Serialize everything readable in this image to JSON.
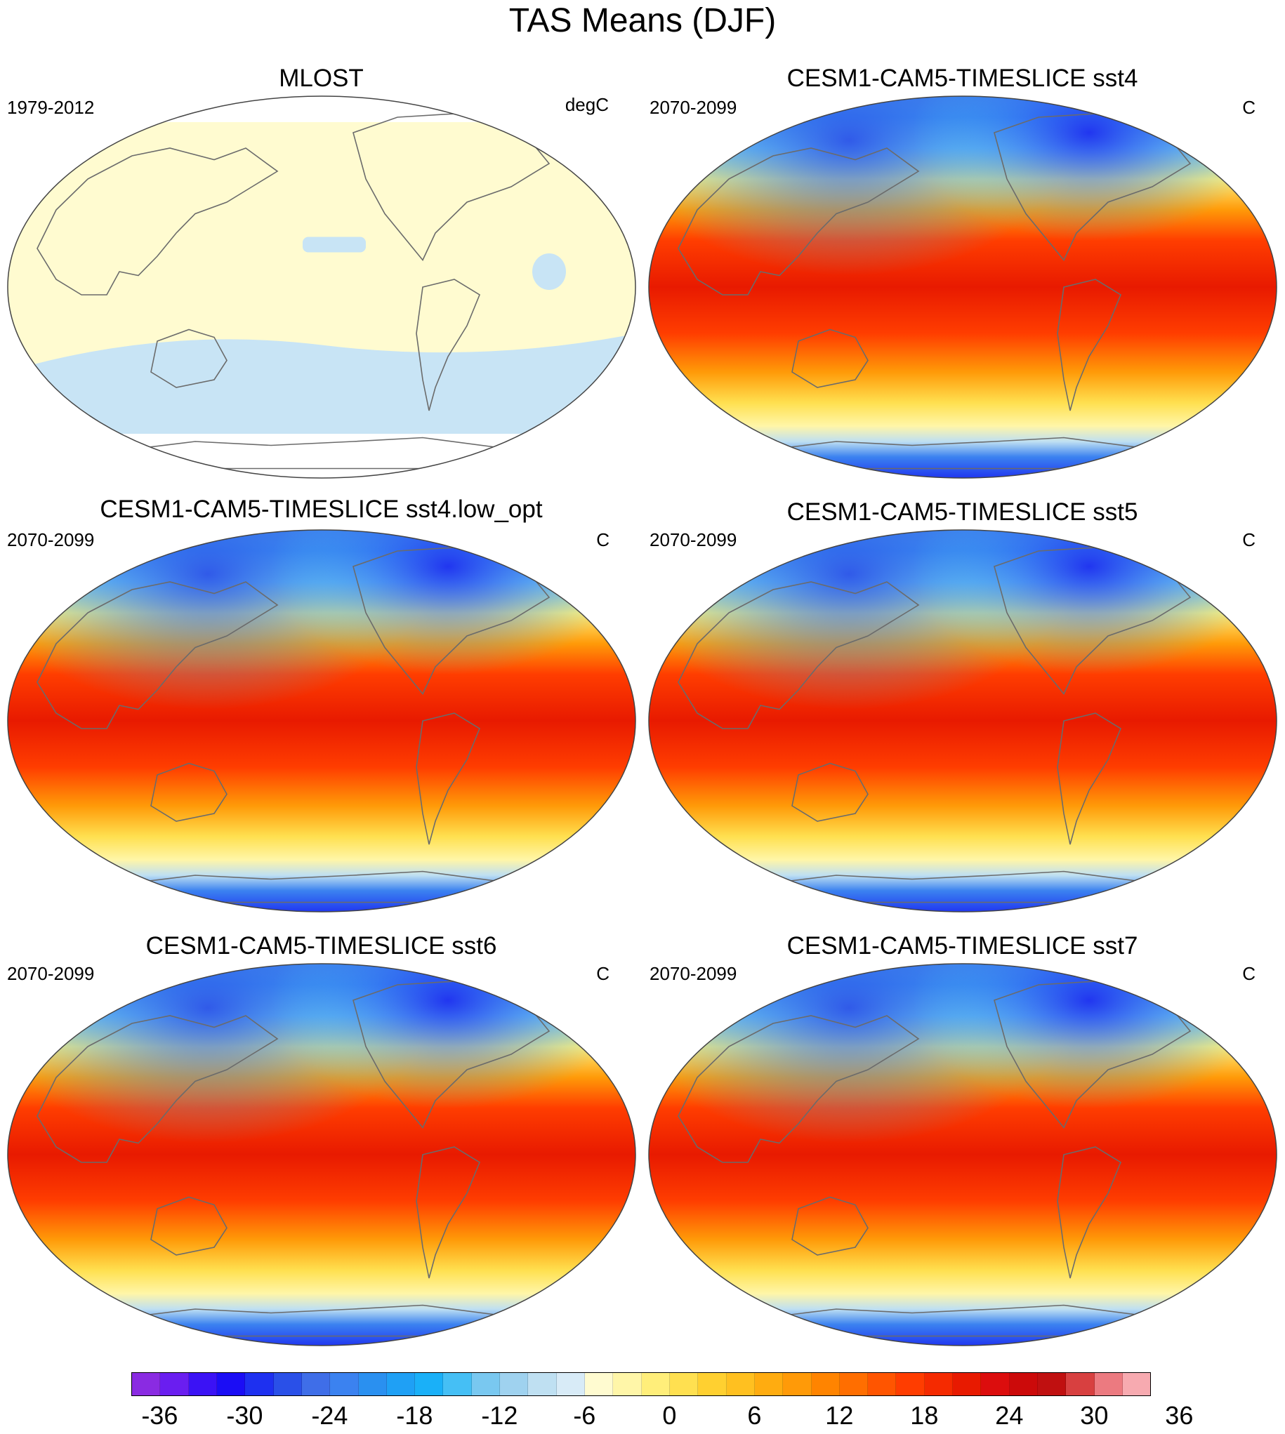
{
  "title": "TAS Means (DJF)",
  "panels": [
    {
      "title": "MLOST",
      "left_text": "1979-2012",
      "right_text": "degC",
      "style": "obs"
    },
    {
      "title": "CESM1-CAM5-TIMESLICE sst4",
      "left_text": "2070-2099",
      "right_text": "C",
      "style": "model"
    },
    {
      "title": "CESM1-CAM5-TIMESLICE sst4.low_opt",
      "left_text": "2070-2099",
      "right_text": "C",
      "style": "model"
    },
    {
      "title": "CESM1-CAM5-TIMESLICE sst5",
      "left_text": "2070-2099",
      "right_text": "C",
      "style": "model"
    },
    {
      "title": "CESM1-CAM5-TIMESLICE sst6",
      "left_text": "2070-2099",
      "right_text": "C",
      "style": "model"
    },
    {
      "title": "CESM1-CAM5-TIMESLICE sst7",
      "left_text": "2070-2099",
      "right_text": "C",
      "style": "model"
    }
  ],
  "colorbar": {
    "labels": [
      "-36",
      "-30",
      "-24",
      "-18",
      "-12",
      "-6",
      "0",
      "6",
      "12",
      "18",
      "24",
      "30",
      "36"
    ],
    "colors": [
      "#8a2be2",
      "#6a1ef0",
      "#3b12f5",
      "#1b0df5",
      "#1e30f0",
      "#2a50e8",
      "#3f6ee8",
      "#3b82f0",
      "#2a90f0",
      "#1fa0f5",
      "#1ab0f8",
      "#45bff5",
      "#79c8f0",
      "#9fd2ef",
      "#bfe0f2",
      "#d8ebf7",
      "#fffbd0",
      "#fff6a8",
      "#ffee7a",
      "#ffe050",
      "#ffd030",
      "#ffc020",
      "#ffac10",
      "#ff9a08",
      "#ff8400",
      "#ff6e00",
      "#ff5500",
      "#ff3d00",
      "#f52a00",
      "#e81a00",
      "#dc0d0d",
      "#cc0a0a",
      "#c01010",
      "#d84040",
      "#ec7a80",
      "#f7aab0"
    ]
  }
}
